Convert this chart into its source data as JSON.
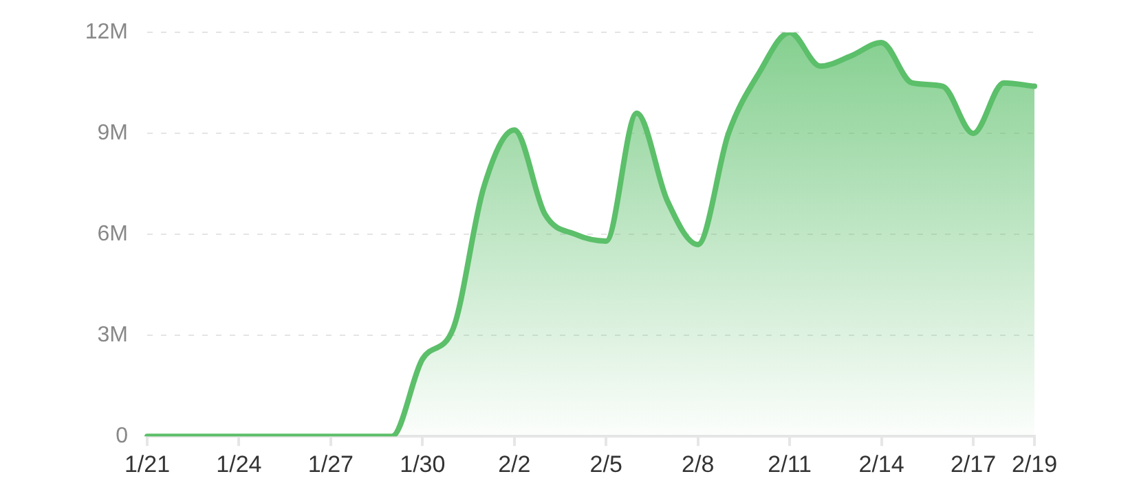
{
  "chart_data": {
    "type": "area",
    "categories": [
      "1/21",
      null,
      null,
      "1/24",
      null,
      null,
      "1/27",
      null,
      null,
      "1/30",
      null,
      null,
      "2/2",
      null,
      null,
      "2/5",
      null,
      null,
      "2/8",
      null,
      null,
      "2/11",
      null,
      null,
      "2/14",
      null,
      null,
      "2/17",
      null,
      "2/19"
    ],
    "series": [
      {
        "color": "#5cbf6a",
        "values": [
          0,
          0,
          0,
          0,
          0,
          0,
          0,
          0,
          0,
          2300000.0,
          3200000.0,
          7400000.0,
          9100000.0,
          6600000.0,
          6000000.0,
          5800000.0,
          9600000.0,
          7000000.0,
          5700000.0,
          9000000.0,
          10800000.0,
          12000000.0,
          11000000.0,
          11300000.0,
          11700000.0,
          10500000.0,
          10400000.0,
          9000000.0,
          10500000.0,
          10400000.0
        ]
      }
    ],
    "ylim": [
      0,
      12000000
    ],
    "yticks": [
      0,
      {
        "value": 3000000,
        "label": "3M"
      },
      {
        "value": 6000000,
        "label": "6M"
      },
      {
        "value": 9000000,
        "label": "9M"
      },
      {
        "value": 12000000,
        "label": "12M"
      }
    ],
    "grid": "y",
    "legend": false,
    "marker": "none",
    "line_style": "solid"
  }
}
